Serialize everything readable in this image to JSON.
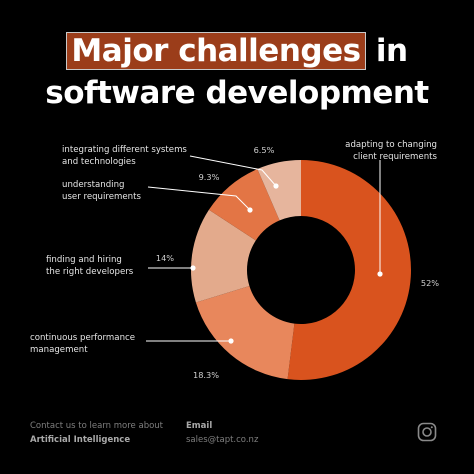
{
  "title": {
    "highlight": "Major challenges",
    "rest_line1": " in",
    "line2": "software development"
  },
  "chart_data": {
    "type": "donut",
    "slices": [
      {
        "label_lines": [
          "adapting to changing",
          "client requirements"
        ],
        "value": 52,
        "value_text": "52%",
        "color": "#d9531e"
      },
      {
        "label_lines": [
          "continuous  performance",
          "management"
        ],
        "value": 18.3,
        "value_text": "18.3%",
        "color": "#e8875c"
      },
      {
        "label_lines": [
          "finding and hiring",
          "the right developers"
        ],
        "value": 14,
        "value_text": "14%",
        "color": "#e3aa8c"
      },
      {
        "label_lines": [
          "understanding",
          "user requirements"
        ],
        "value": 9.3,
        "value_text": "9.3%",
        "color": "#e37545"
      },
      {
        "label_lines": [
          "integrating different systems",
          "and technologies"
        ],
        "value": 6.5,
        "value_text": "6.5%",
        "color": "#e6b59d"
      }
    ]
  },
  "footer": {
    "contact_line": "Contact us to learn more about",
    "contact_topic": "Artificial Intelligence",
    "email_label": "Email",
    "email_value": "sales@tapt.co.nz"
  },
  "icons": {
    "social": "instagram-icon"
  }
}
